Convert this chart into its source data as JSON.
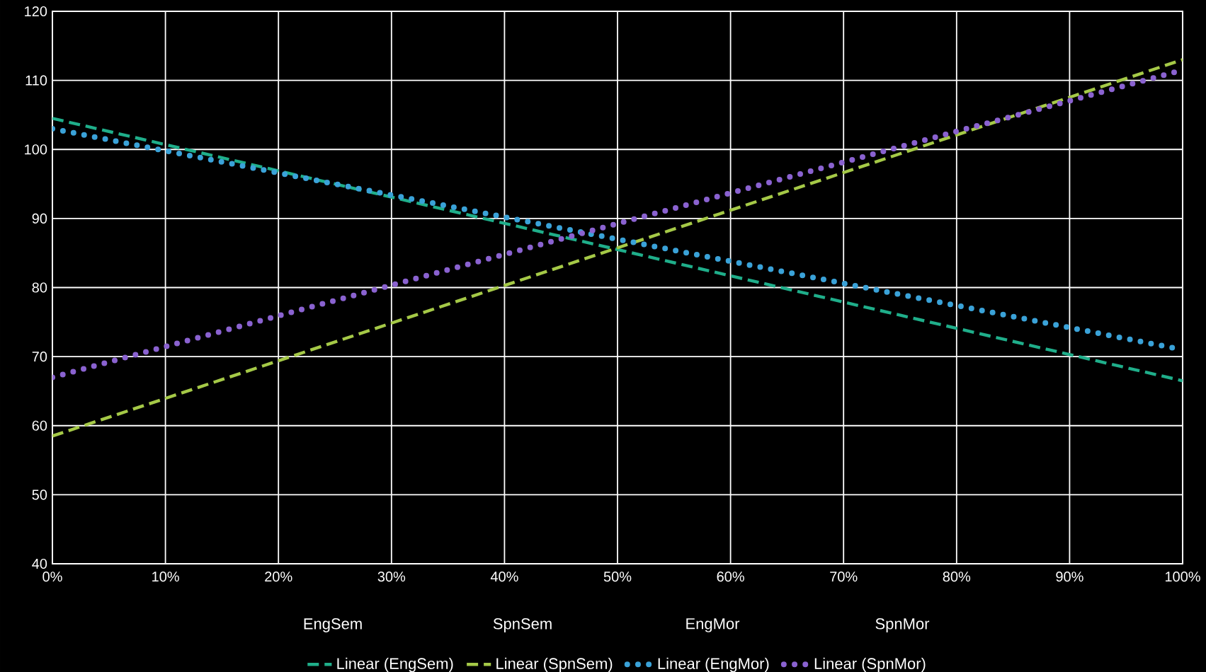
{
  "chart_data": {
    "type": "line",
    "xlim": [
      0,
      100
    ],
    "ylim": [
      40,
      120
    ],
    "xticks": [
      {
        "value": 0,
        "label": "0%"
      },
      {
        "value": 10,
        "label": "10%"
      },
      {
        "value": 20,
        "label": "20%"
      },
      {
        "value": 30,
        "label": "30%"
      },
      {
        "value": 40,
        "label": "40%"
      },
      {
        "value": 50,
        "label": "50%"
      },
      {
        "value": 60,
        "label": "60%"
      },
      {
        "value": 70,
        "label": "70%"
      },
      {
        "value": 80,
        "label": "80%"
      },
      {
        "value": 90,
        "label": "90%"
      },
      {
        "value": 100,
        "label": "100%"
      }
    ],
    "yticks": [
      40,
      50,
      60,
      70,
      80,
      90,
      100,
      110,
      120
    ],
    "x": [
      0,
      100
    ],
    "grid": true,
    "legend": "bottom",
    "marker": "none",
    "annotations": [
      "EngSem",
      "SpnSem",
      "EngMor",
      "SpnMor"
    ],
    "series": [
      {
        "name": "Linear (EngSem)",
        "color": "#1fae8a",
        "line_style": "dashed",
        "values": [
          104.5,
          66.5
        ]
      },
      {
        "name": "Linear (SpnSem)",
        "color": "#a5c947",
        "line_style": "dashed",
        "values": [
          58.5,
          113
        ]
      },
      {
        "name": "Linear (EngMor)",
        "color": "#3aa2d8",
        "line_style": "dotted",
        "values": [
          103,
          71
        ]
      },
      {
        "name": "Linear (SpnMor)",
        "color": "#8a62d0",
        "line_style": "dotted",
        "values": [
          67,
          111.5
        ]
      }
    ]
  }
}
